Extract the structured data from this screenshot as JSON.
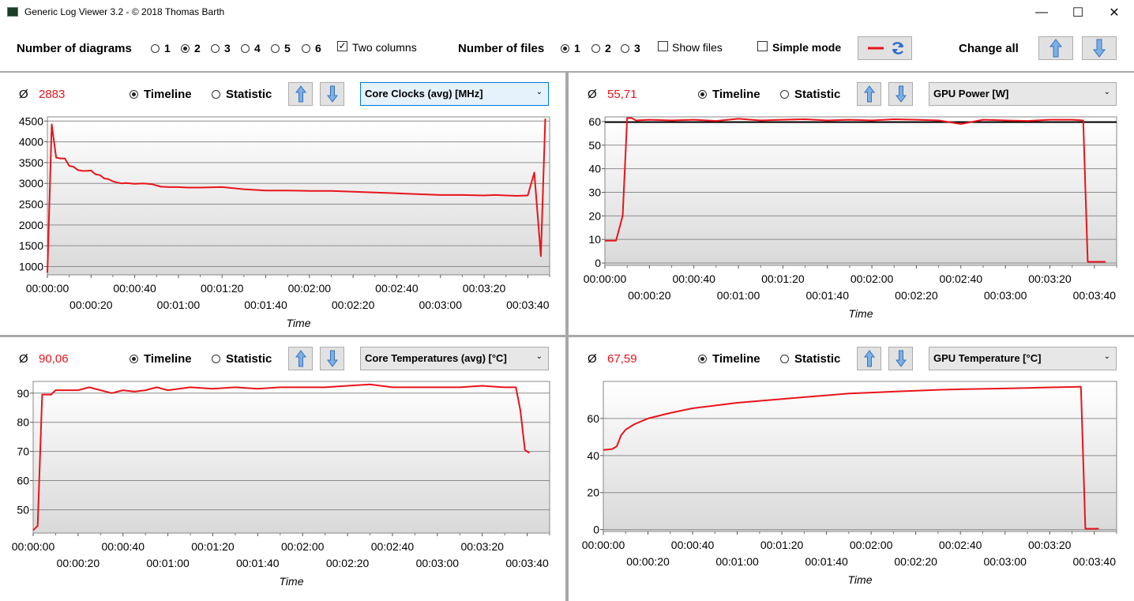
{
  "window": {
    "title": "Generic Log Viewer 3.2 - © 2018 Thomas Barth",
    "minimize_glyph": "—",
    "maximize_glyph": "☐",
    "close_glyph": "✕"
  },
  "toolbar": {
    "diagrams_label": "Number of diagrams",
    "diagram_options": [
      "1",
      "2",
      "3",
      "4",
      "5",
      "6"
    ],
    "diagram_selected": "2",
    "two_columns_label": "Two columns",
    "two_columns_checked": true,
    "files_label": "Number of files",
    "file_options": [
      "1",
      "2",
      "3"
    ],
    "file_selected": "1",
    "show_files_label": "Show files",
    "simple_mode_label": "Simple mode",
    "change_all_label": "Change all"
  },
  "panels": [
    {
      "avg_symbol": "Ø",
      "avg_value": "2883",
      "timeline_label": "Timeline",
      "statistic_label": "Statistic",
      "metric": "Core Clocks (avg) [MHz]",
      "xlabel": "Time"
    },
    {
      "avg_symbol": "Ø",
      "avg_value": "55,71",
      "timeline_label": "Timeline",
      "statistic_label": "Statistic",
      "metric": "GPU Power [W]",
      "xlabel": "Time"
    },
    {
      "avg_symbol": "Ø",
      "avg_value": "90,06",
      "timeline_label": "Timeline",
      "statistic_label": "Statistic",
      "metric": "Core Temperatures (avg) [°C]",
      "xlabel": "Time"
    },
    {
      "avg_symbol": "Ø",
      "avg_value": "67,59",
      "timeline_label": "Timeline",
      "statistic_label": "Statistic",
      "metric": "GPU Temperature [°C]",
      "xlabel": "Time"
    }
  ],
  "chart_data": [
    {
      "type": "line",
      "xlabel": "Time",
      "x_ticks": [
        "00:00:00",
        "00:00:20",
        "00:00:40",
        "00:01:00",
        "00:01:20",
        "00:01:40",
        "00:02:00",
        "00:02:20",
        "00:02:40",
        "00:03:00",
        "00:03:20",
        "00:03:40"
      ],
      "ylim": [
        800,
        4600
      ],
      "y_ticks": [
        1000,
        1500,
        2000,
        2500,
        3000,
        3500,
        4000,
        4500
      ],
      "series_color": "#e8141b",
      "x": [
        0,
        2,
        4,
        6,
        8,
        10,
        12,
        14,
        16,
        18,
        20,
        22,
        24,
        26,
        28,
        30,
        32,
        34,
        36,
        38,
        40,
        44,
        48,
        52,
        56,
        60,
        64,
        70,
        80,
        90,
        100,
        110,
        120,
        130,
        140,
        150,
        160,
        170,
        180,
        190,
        200,
        205,
        210,
        215,
        220,
        223,
        226,
        228
      ],
      "values": [
        850,
        4420,
        3620,
        3600,
        3600,
        3420,
        3400,
        3320,
        3300,
        3300,
        3310,
        3220,
        3200,
        3120,
        3100,
        3050,
        3020,
        3000,
        3010,
        3000,
        2990,
        3000,
        2980,
        2920,
        2910,
        2910,
        2900,
        2900,
        2910,
        2860,
        2830,
        2830,
        2820,
        2820,
        2800,
        2780,
        2760,
        2740,
        2720,
        2720,
        2710,
        2720,
        2710,
        2700,
        2710,
        3260,
        1250,
        4560
      ],
      "reference_line": null
    },
    {
      "type": "line",
      "xlabel": "Time",
      "x_ticks": [
        "00:00:00",
        "00:00:20",
        "00:00:40",
        "00:01:00",
        "00:01:20",
        "00:01:40",
        "00:02:00",
        "00:02:20",
        "00:02:40",
        "00:03:00",
        "00:03:20",
        "00:03:40"
      ],
      "ylim": [
        -1,
        62
      ],
      "y_ticks": [
        0,
        10,
        20,
        30,
        40,
        50,
        60
      ],
      "series_color": "#e8141b",
      "x": [
        0,
        5,
        8,
        10,
        12,
        14,
        20,
        30,
        40,
        50,
        60,
        70,
        80,
        90,
        100,
        110,
        120,
        130,
        140,
        150,
        160,
        170,
        180,
        190,
        200,
        210,
        215,
        217,
        221,
        225
      ],
      "values": [
        9.5,
        9.5,
        20,
        61.5,
        61.5,
        60.5,
        60.8,
        60.5,
        60.8,
        60.3,
        61.2,
        60.5,
        60.8,
        61,
        60.5,
        60.8,
        60.5,
        61,
        60.8,
        60.5,
        59,
        60.8,
        60.5,
        60.3,
        60.8,
        60.8,
        60.5,
        0.5,
        0.5,
        0.5
      ],
      "reference_line": 59.8
    },
    {
      "type": "line",
      "xlabel": "Time",
      "x_ticks": [
        "00:00:00",
        "00:00:20",
        "00:00:40",
        "00:01:00",
        "00:01:20",
        "00:01:40",
        "00:02:00",
        "00:02:20",
        "00:02:40",
        "00:03:00",
        "00:03:20",
        "00:03:40"
      ],
      "ylim": [
        42,
        94
      ],
      "y_ticks": [
        50,
        60,
        70,
        80,
        90
      ],
      "series_color": "#e8141b",
      "x": [
        0,
        2,
        4,
        6,
        8,
        10,
        14,
        20,
        25,
        30,
        35,
        40,
        45,
        50,
        55,
        60,
        70,
        80,
        90,
        100,
        110,
        120,
        130,
        140,
        150,
        160,
        170,
        180,
        190,
        200,
        210,
        215,
        217,
        219,
        221
      ],
      "values": [
        43,
        44.5,
        89.5,
        89.5,
        89.5,
        91,
        91,
        91,
        92,
        91,
        90,
        91,
        90.5,
        91,
        92,
        91,
        92,
        91.5,
        92,
        91.5,
        92,
        92,
        92,
        92.5,
        93,
        92,
        92,
        92,
        92,
        92.5,
        92,
        92,
        84,
        70.5,
        69.5
      ],
      "reference_line": null
    },
    {
      "type": "line",
      "xlabel": "Time",
      "x_ticks": [
        "00:00:00",
        "00:00:20",
        "00:00:40",
        "00:01:00",
        "00:01:20",
        "00:01:40",
        "00:02:00",
        "00:02:20",
        "00:02:40",
        "00:03:00",
        "00:03:20",
        "00:03:40"
      ],
      "ylim": [
        -1,
        80
      ],
      "y_ticks": [
        0,
        20,
        40,
        60
      ],
      "series_color": "#e8141b",
      "x": [
        0,
        4,
        6,
        8,
        10,
        14,
        20,
        30,
        40,
        50,
        60,
        70,
        80,
        90,
        100,
        110,
        120,
        130,
        140,
        150,
        160,
        170,
        180,
        190,
        200,
        210,
        214,
        216,
        219,
        222
      ],
      "values": [
        43,
        43.5,
        45,
        51,
        54,
        57,
        60,
        63,
        65.5,
        67,
        68.5,
        69.5,
        70.5,
        71.5,
        72.5,
        73.5,
        74,
        74.5,
        75,
        75.5,
        75.8,
        76,
        76.2,
        76.5,
        76.8,
        77,
        77.2,
        0.5,
        0.5,
        0.5
      ],
      "reference_line": null
    }
  ]
}
